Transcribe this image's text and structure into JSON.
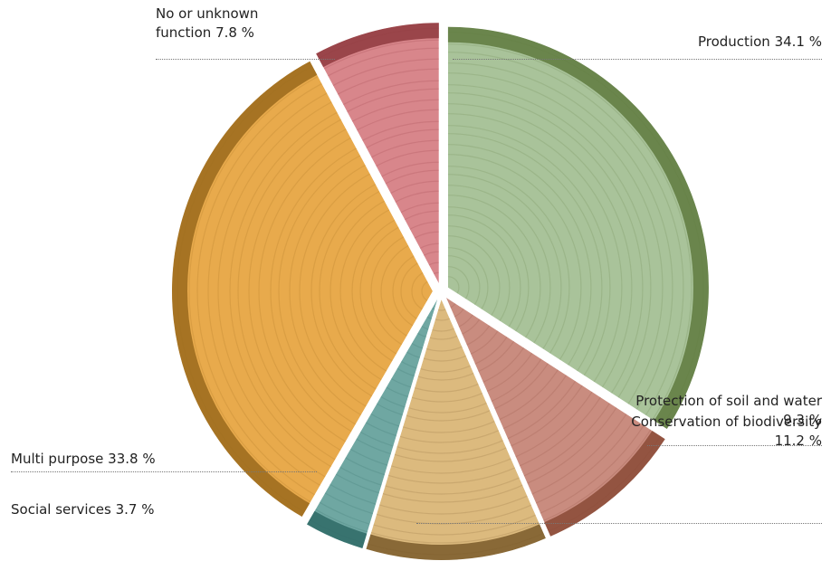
{
  "chart_data": {
    "type": "pie",
    "categories": [
      "Production",
      "Protection of soil and water",
      "Conservation of biodiversity",
      "Social services",
      "Multi purpose",
      "No or unknown function"
    ],
    "values": [
      34.1,
      9.3,
      11.2,
      3.7,
      33.8,
      7.8
    ],
    "value_labels": [
      "34.1 %",
      "9.3 %",
      "11.2 %",
      "3.7 %",
      "33.8 %",
      "7.8 %"
    ],
    "colors": [
      "#a9c39a",
      "#c98c7f",
      "#dcba7e",
      "#6fa7a2",
      "#e8aa4c",
      "#d8868b"
    ]
  }
}
